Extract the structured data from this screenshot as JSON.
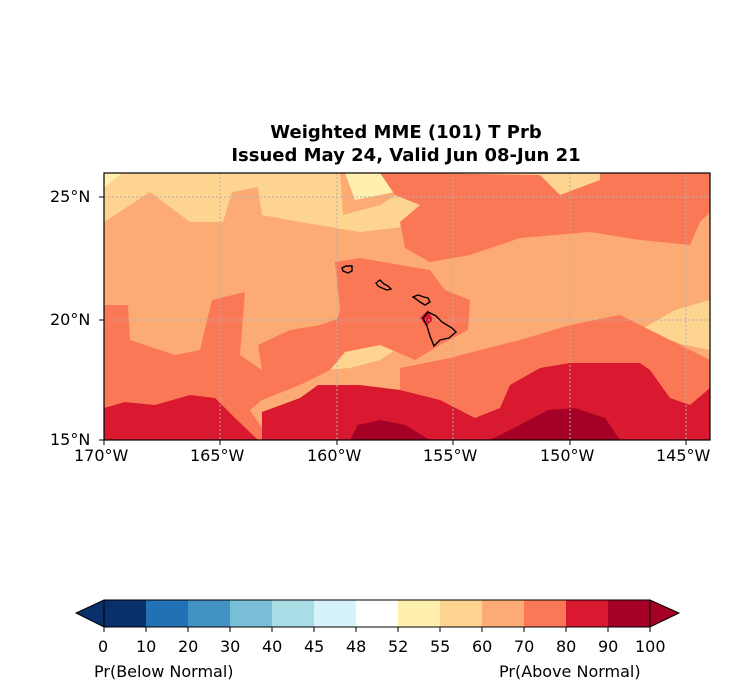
{
  "title": {
    "line1": "Weighted MME (101) T Prb",
    "line2": "Issued May 24, Valid Jun 08-Jun 21"
  },
  "map": {
    "lon_range": [
      -170,
      -144
    ],
    "lat_range": [
      15,
      26
    ],
    "x_ticks": [
      "170°W",
      "165°W",
      "160°W",
      "155°W",
      "150°W",
      "145°W"
    ],
    "y_ticks": [
      "25°N",
      "20°N",
      "15°N"
    ],
    "gridlines": true,
    "coastline_region": "Hawaiian Islands"
  },
  "colorbar": {
    "ticks": [
      "0",
      "10",
      "20",
      "30",
      "40",
      "45",
      "48",
      "52",
      "55",
      "60",
      "70",
      "80",
      "90",
      "100"
    ],
    "colors": [
      "#08306b",
      "#2171b5",
      "#4292c6",
      "#77bed6",
      "#aadce6",
      "#d6f2fb",
      "#ffffff",
      "#fff0b0",
      "#fdd591",
      "#fcab74",
      "#fb7856",
      "#d9192f",
      "#a50026"
    ],
    "extend_below_color": "#08306b",
    "extend_above_color": "#a50026",
    "left_label": "Pr(Below Normal)",
    "right_label": "Pr(Above Normal)"
  }
}
